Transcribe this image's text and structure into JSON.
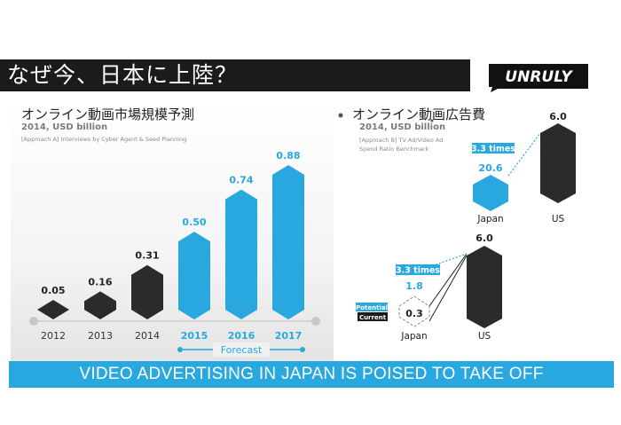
{
  "header": {
    "title": "なぜ今、日本に上陸？",
    "logo_text": "UNRULY"
  },
  "colors": {
    "dark": "#2b2b2b",
    "blue": "#29a8e0",
    "title_bg": "#1b1b1b",
    "white": "#ffffff"
  },
  "left": {
    "title": "オンライン動画市場規模予測",
    "subtitle": "2014, USD billion",
    "note": "[Approach A] Interviews by Cyber Agent & Seed Planning",
    "forecast_label": "Forecast"
  },
  "right": {
    "title": "オンライン動画広告費",
    "subtitle": "2014, USD billion",
    "note_line1": "[Approach B] TV Ad/Video Ad",
    "note_line2": "Spend Ratio Benchmark",
    "potential_label": "Potential",
    "current_label": "Current"
  },
  "footer": {
    "text": "VIDEO ADVERTISING IN JAPAN IS POISED TO TAKE OFF"
  },
  "chart_data": [
    {
      "type": "bar",
      "title": "オンライン動画市場規模予測",
      "subtitle": "2014, USD billion",
      "categories": [
        "2012",
        "2013",
        "2014",
        "2015",
        "2016",
        "2017"
      ],
      "values": [
        0.05,
        0.16,
        0.31,
        0.5,
        0.74,
        0.88
      ],
      "forecast": [
        false,
        false,
        false,
        true,
        true,
        true
      ],
      "ylim": [
        0,
        0.88
      ]
    },
    {
      "type": "bar",
      "title": "オンライン動画広告費",
      "subtitle": "2014, USD billion",
      "categories": [
        "Japan",
        "US"
      ],
      "values": [
        20.6,
        6.0
      ],
      "labels": [
        "20.6",
        "6.0"
      ],
      "ratio_label": "3.3 times"
    },
    {
      "type": "bar",
      "categories": [
        "Japan",
        "US"
      ],
      "values": [
        0.3,
        6.0
      ],
      "labels": [
        "0.3",
        "6.0"
      ],
      "potential": 1.8,
      "potential_label": "1.8",
      "ratio_label": "3.3 times"
    }
  ]
}
